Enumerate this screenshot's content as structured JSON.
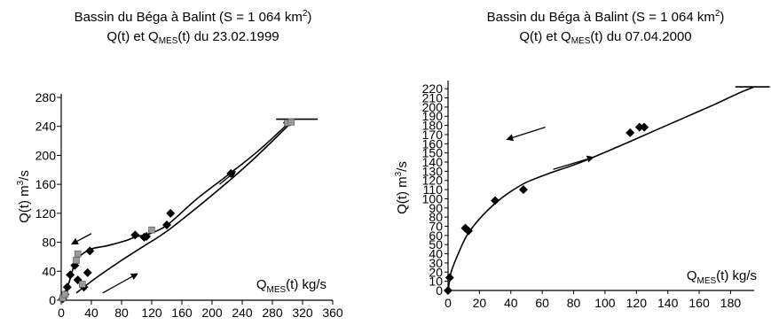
{
  "chart_data": [
    {
      "type": "scatter",
      "title_prefix": "Bassin du Béga à Balint (S = 1 064 km",
      "title_sup": "2",
      "title_suffix": ")",
      "subtitle_parts": [
        "Q(t) et Q",
        "MES",
        "(t) du 23.02.1999"
      ],
      "xlabel_parts": [
        "Q",
        "MES",
        "(t) kg/s"
      ],
      "ylabel_parts": [
        "Q(t) m",
        "3",
        "/s"
      ],
      "xlim": [
        0,
        360
      ],
      "ylim": [
        0,
        280
      ],
      "xticks": [
        0,
        40,
        80,
        120,
        160,
        200,
        240,
        280,
        320,
        360
      ],
      "yticks": [
        0,
        40,
        80,
        120,
        160,
        200,
        240,
        280
      ],
      "xtick_labels": [
        "0",
        "40",
        "80",
        "120",
        "160",
        "200",
        "240",
        "280",
        "320",
        "360"
      ],
      "ytick_labels": [
        "0",
        "40",
        "80",
        "120",
        "160",
        "200",
        "240",
        "280"
      ],
      "series": [
        {
          "marker": "diamond-black",
          "points": [
            [
              2,
              2
            ],
            [
              5,
              8
            ],
            [
              8,
              18
            ],
            [
              12,
              35
            ],
            [
              18,
              48
            ],
            [
              22,
              28
            ],
            [
              30,
              18
            ],
            [
              35,
              38
            ],
            [
              38,
              68
            ],
            [
              98,
              90
            ],
            [
              110,
              87
            ],
            [
              113,
              88
            ],
            [
              140,
              104
            ],
            [
              145,
              120
            ],
            [
              225,
              175
            ],
            [
              300,
              245
            ]
          ]
        },
        {
          "marker": "square-grey",
          "points": [
            [
              2,
              3
            ],
            [
              5,
              8
            ],
            [
              20,
              55
            ],
            [
              22,
              64
            ],
            [
              28,
              22
            ],
            [
              120,
              97
            ],
            [
              300,
              245
            ],
            [
              305,
              246
            ]
          ]
        }
      ],
      "curves": [
        [
          [
            3,
            0
          ],
          [
            12,
            30
          ],
          [
            20,
            55
          ],
          [
            38,
            70
          ],
          [
            60,
            75
          ],
          [
            85,
            82
          ],
          [
            100,
            88
          ],
          [
            115,
            91
          ],
          [
            135,
            100
          ],
          [
            150,
            112
          ],
          [
            180,
            140
          ],
          [
            220,
            172
          ],
          [
            260,
            205
          ],
          [
            300,
            243
          ]
        ],
        [
          [
            20,
            10
          ],
          [
            45,
            30
          ],
          [
            80,
            55
          ],
          [
            110,
            75
          ],
          [
            130,
            88
          ],
          [
            150,
            103
          ],
          [
            200,
            145
          ],
          [
            250,
            190
          ],
          [
            300,
            240
          ]
        ]
      ],
      "horizontal_mark": {
        "y": 250,
        "x": [
          285,
          340
        ]
      },
      "arrows": [
        {
          "from": [
            40,
            92
          ],
          "to": [
            15,
            78
          ]
        },
        {
          "from": [
            55,
            10
          ],
          "to": [
            100,
            36
          ]
        },
        {
          "from": [
            210,
            160
          ],
          "to": [
            230,
            177
          ]
        }
      ]
    },
    {
      "type": "scatter",
      "title_prefix": "Bassin du Béga à Balint (S = 1 064 km",
      "title_sup": "2",
      "title_suffix": ")",
      "subtitle_parts": [
        "Q(t) et Q",
        "MES",
        "(t) du 07.04.2000"
      ],
      "xlabel_parts": [
        "Q",
        "MES",
        "(t) kg/s"
      ],
      "ylabel_parts": [
        "Q(t) m",
        "3",
        "/s"
      ],
      "xlim": [
        0,
        195
      ],
      "ylim": [
        0,
        225
      ],
      "xticks": [
        0,
        20,
        40,
        60,
        80,
        100,
        120,
        140,
        160,
        180
      ],
      "yticks": [
        0,
        10,
        20,
        30,
        40,
        50,
        60,
        70,
        80,
        90,
        100,
        110,
        120,
        130,
        140,
        150,
        160,
        170,
        180,
        190,
        200,
        210,
        220
      ],
      "xtick_labels": [
        "0",
        "20",
        "40",
        "60",
        "80",
        "100",
        "120",
        "140",
        "160",
        "180"
      ],
      "ytick_labels": [
        "0",
        "10",
        "20",
        "30",
        "40",
        "50",
        "60",
        "70",
        "80",
        "90",
        "100",
        "110",
        "120",
        "130",
        "140",
        "150",
        "160",
        "170",
        "180",
        "190",
        "200",
        "210",
        "220"
      ],
      "series": [
        {
          "marker": "diamond-black",
          "points": [
            [
              0,
              0
            ],
            [
              1,
              14
            ],
            [
              11,
              68
            ],
            [
              13,
              65
            ],
            [
              30,
              98
            ],
            [
              48,
              110
            ],
            [
              116,
              172
            ],
            [
              122,
              178
            ],
            [
              125,
              178
            ]
          ]
        }
      ],
      "curves": [
        [
          [
            0,
            0
          ],
          [
            2,
            20
          ],
          [
            6,
            38
          ],
          [
            12,
            60
          ],
          [
            20,
            78
          ],
          [
            30,
            95
          ],
          [
            40,
            108
          ],
          [
            50,
            118
          ],
          [
            65,
            128
          ],
          [
            85,
            140
          ],
          [
            110,
            158
          ],
          [
            130,
            173
          ],
          [
            150,
            188
          ],
          [
            170,
            203
          ],
          [
            185,
            215
          ],
          [
            195,
            222
          ]
        ]
      ],
      "horizontal_mark": {
        "y": 222,
        "x": [
          183,
          205
        ]
      },
      "arrows": [
        {
          "from": [
            62,
            178
          ],
          "to": [
            38,
            165
          ]
        },
        {
          "from": [
            67,
            132
          ],
          "to": [
            92,
            145
          ]
        }
      ]
    }
  ]
}
